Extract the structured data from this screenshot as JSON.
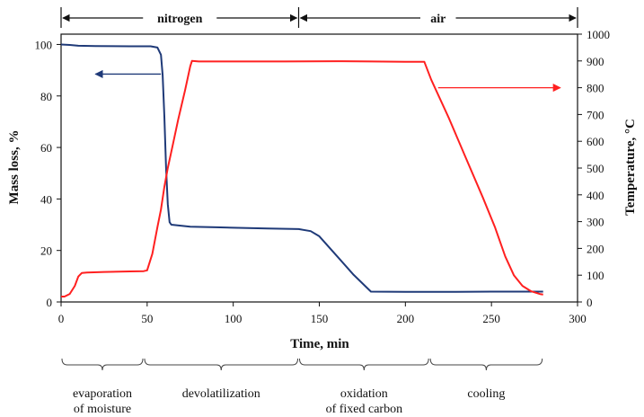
{
  "chart_data": {
    "type": "line",
    "title": "",
    "xlabel": "Time, min",
    "ylabel_left": "Mass loss, %",
    "ylabel_right": "Temperature, °C",
    "xlim": [
      0,
      300
    ],
    "ylim_left": [
      0,
      104
    ],
    "ylim_right": [
      0,
      1000
    ],
    "x_ticks": [
      0,
      50,
      100,
      150,
      200,
      250,
      300
    ],
    "y_ticks_left": [
      0,
      20,
      40,
      60,
      80,
      100
    ],
    "y_ticks_right": [
      0,
      100,
      200,
      300,
      400,
      500,
      600,
      700,
      800,
      900,
      1000
    ],
    "grid": false,
    "series": [
      {
        "axis": "left",
        "color": "#1f3a78",
        "points": [
          [
            0,
            100
          ],
          [
            5,
            99.8
          ],
          [
            10,
            99.5
          ],
          [
            20,
            99.4
          ],
          [
            40,
            99.3
          ],
          [
            52,
            99.3
          ],
          [
            56,
            98.8
          ],
          [
            58,
            96
          ],
          [
            59,
            88
          ],
          [
            60,
            72
          ],
          [
            61,
            52
          ],
          [
            62,
            38
          ],
          [
            63,
            31
          ],
          [
            64,
            30
          ],
          [
            75,
            29.2
          ],
          [
            90,
            29
          ],
          [
            120,
            28.5
          ],
          [
            138,
            28.3
          ],
          [
            145,
            27.5
          ],
          [
            150,
            25.5
          ],
          [
            160,
            18
          ],
          [
            170,
            10.5
          ],
          [
            180,
            4
          ],
          [
            200,
            3.9
          ],
          [
            220,
            3.9
          ],
          [
            250,
            4
          ],
          [
            270,
            4
          ],
          [
            280,
            4
          ]
        ]
      },
      {
        "axis": "right",
        "color": "#ff2020",
        "points": [
          [
            0,
            20
          ],
          [
            2,
            20
          ],
          [
            5,
            30
          ],
          [
            8,
            60
          ],
          [
            10,
            95
          ],
          [
            12,
            108
          ],
          [
            15,
            110
          ],
          [
            25,
            112
          ],
          [
            40,
            114
          ],
          [
            48,
            115
          ],
          [
            50,
            118
          ],
          [
            53,
            180
          ],
          [
            56,
            280
          ],
          [
            58,
            345
          ],
          [
            60,
            430
          ],
          [
            62,
            500
          ],
          [
            65,
            590
          ],
          [
            68,
            680
          ],
          [
            72,
            790
          ],
          [
            75,
            880
          ],
          [
            76,
            900
          ],
          [
            80,
            898
          ],
          [
            100,
            898
          ],
          [
            130,
            898
          ],
          [
            160,
            899
          ],
          [
            180,
            898
          ],
          [
            200,
            897
          ],
          [
            211,
            897
          ],
          [
            215,
            830
          ],
          [
            225,
            690
          ],
          [
            235,
            540
          ],
          [
            245,
            390
          ],
          [
            252,
            280
          ],
          [
            258,
            170
          ],
          [
            263,
            100
          ],
          [
            268,
            60
          ],
          [
            273,
            40
          ],
          [
            278,
            30
          ],
          [
            280,
            28
          ]
        ]
      }
    ],
    "annotations": [
      {
        "text": "nitrogen",
        "x_from": 0,
        "x_to": 138
      },
      {
        "text": "air",
        "x_from": 138,
        "x_to": 300
      }
    ],
    "stages": [
      {
        "text": [
          "evaporation",
          "of moisture"
        ],
        "x_from": 0,
        "x_to": 48
      },
      {
        "text": [
          "devolatilization"
        ],
        "x_from": 48,
        "x_to": 138
      },
      {
        "text": [
          "oxidation",
          "of fixed carbon"
        ],
        "x_from": 138,
        "x_to": 214
      },
      {
        "text": [
          "cooling"
        ],
        "x_from": 214,
        "x_to": 280
      }
    ],
    "arrows": [
      {
        "direction": "left",
        "color": "#1f3a78",
        "y_axis": "left",
        "y": 88.5,
        "x_from": 58,
        "x_to": 20
      },
      {
        "direction": "right",
        "color": "#ff2020",
        "y_axis": "right",
        "y": 800,
        "x_from": 219,
        "x_to": 290
      }
    ]
  }
}
